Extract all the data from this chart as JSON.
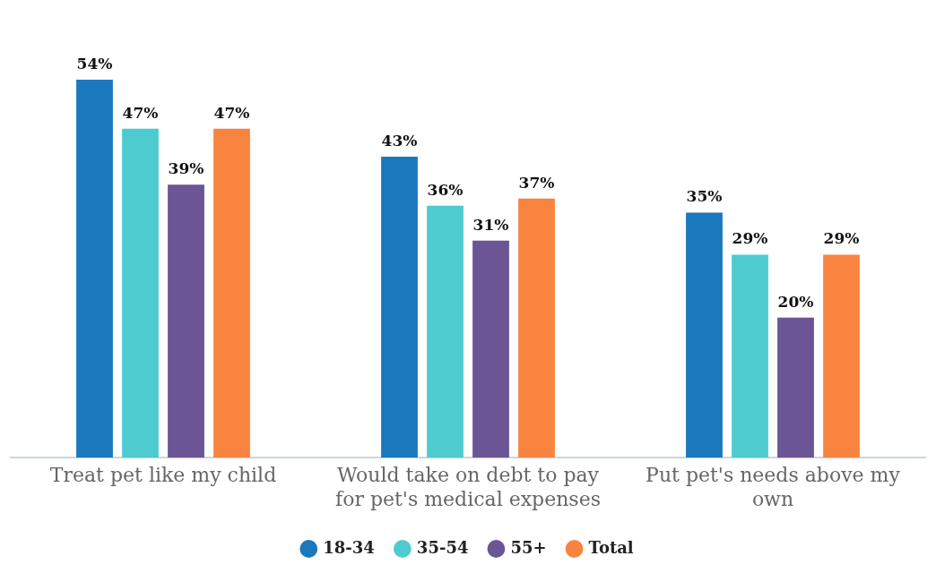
{
  "chart_data": {
    "type": "bar",
    "categories": [
      "Treat pet like my child",
      "Would take on debt to pay for pet's medical expenses",
      "Put pet's needs above my own"
    ],
    "series": [
      {
        "name": "18-34",
        "color": "#1a78bd",
        "values": [
          54,
          43,
          35
        ],
        "value_labels": [
          "54%",
          "43%",
          "35%"
        ]
      },
      {
        "name": "35-54",
        "color": "#4ecbcf",
        "values": [
          47,
          36,
          29
        ],
        "value_labels": [
          "47%",
          "36%",
          "29%"
        ]
      },
      {
        "name": "55+",
        "color": "#6c5594",
        "values": [
          39,
          31,
          20
        ],
        "value_labels": [
          "39%",
          "31%",
          "20%"
        ]
      },
      {
        "name": "Total",
        "color": "#f8843f",
        "values": [
          47,
          37,
          29
        ],
        "value_labels": [
          "47%",
          "37%",
          "29%"
        ]
      }
    ],
    "grid": false,
    "legend": "bottom"
  }
}
